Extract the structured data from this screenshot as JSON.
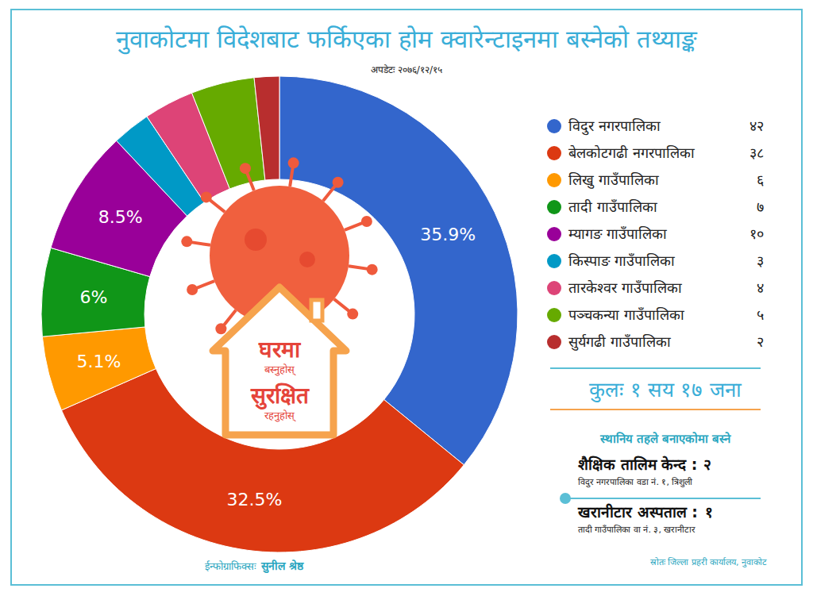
{
  "chart_data": {
    "type": "pie",
    "title": "नुवाकोटमा विदेशबाट फर्किएका होम क्वारेन्टाइनमा बस्नेको तथ्याङ्क",
    "subtitle": "अपडेटः २०७६/१२/१५",
    "categories": [
      "विदुर नगरपालिका",
      "बेलकोटगढी नगरपालिका",
      "लिखु गाउँपालिका",
      "तादी गाउँपालिका",
      "म्यागङ गाउँपालिका",
      "किस्पाङ गाउँपालिका",
      "तारकेश्वर गाउँपालिका",
      "पञ्चकन्या गाउँपालिका",
      "सुर्यगढी गाउँपालिका"
    ],
    "values": [
      35.9,
      32.5,
      5.1,
      6,
      8.5,
      2.6,
      3.4,
      4.3,
      1.7
    ],
    "value_labels": [
      "35.9%",
      "32.5%",
      "5.1%",
      "6%",
      "8.5%",
      null,
      null,
      null,
      null
    ],
    "data_labels": true,
    "colors": [
      "#3366cc",
      "#dc3912",
      "#ff9900",
      "#109618",
      "#990099",
      "#0099c6",
      "#dd4477",
      "#66aa00",
      "#b82e2e"
    ],
    "counts": [
      42,
      38,
      6,
      7,
      10,
      3,
      4,
      5,
      2
    ],
    "count_labels": [
      "४२",
      "३८",
      "६",
      "७",
      "१०",
      "३",
      "४",
      "५",
      "२"
    ],
    "legend": "right",
    "total": 117,
    "total_label": "कुलः १ सय १७ जना",
    "center_text": [
      "घरमा",
      "बस्नुहोस्",
      "सुरक्षित",
      "रहनुहोस्"
    ],
    "facilities_title": "स्थानिय तहले बनाएकोमा बस्ने",
    "facilities": [
      {
        "name": "शैक्षिक तालिम केन्द :",
        "count": 2,
        "count_label": "२",
        "address": "विदुर नगरपालिका वडा नं. १, त्रिशुली"
      },
      {
        "name": "खरानीटार अस्पताल :",
        "count": 1,
        "count_label": "१",
        "address": "तादी गाउँपालिका वा नं. ३, खरानीटार"
      }
    ],
    "credit_label": "ईन्फोग्राफिक्सः",
    "credit_name": "सुनील श्रेष्ठ",
    "source": "स्रोतः जिल्ला प्रहरी कार्यालय, नुवाकोट"
  }
}
